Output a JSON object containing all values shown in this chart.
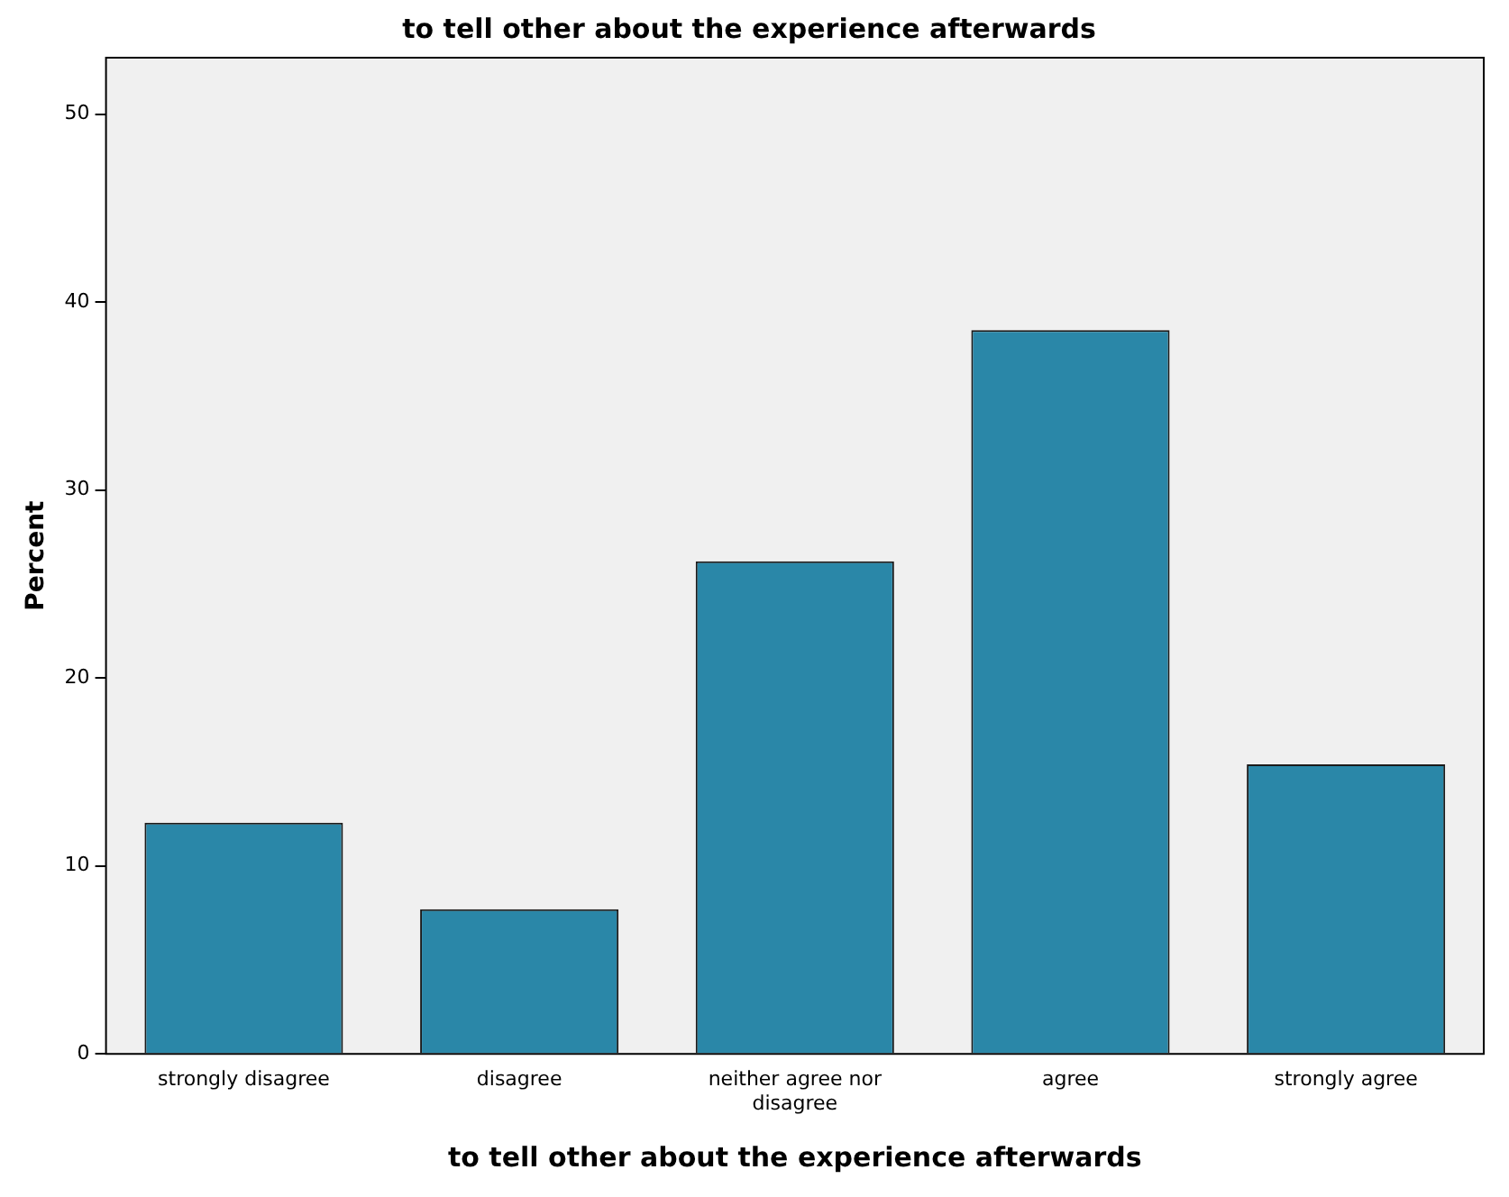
{
  "chart_data": {
    "type": "bar",
    "title": "to tell other about the experience afterwards",
    "xlabel": "to tell other about the experience afterwards",
    "ylabel": "Percent",
    "categories": [
      "strongly disagree",
      "disagree",
      "neither agree nor disagree",
      "agree",
      "strongly agree"
    ],
    "values": [
      12.3,
      7.7,
      26.2,
      38.5,
      15.4
    ],
    "color": "#2a87a8",
    "ylim": [
      0,
      53
    ],
    "yticks": [
      0,
      10,
      20,
      30,
      40,
      50
    ],
    "grid": false,
    "legend": false
  }
}
